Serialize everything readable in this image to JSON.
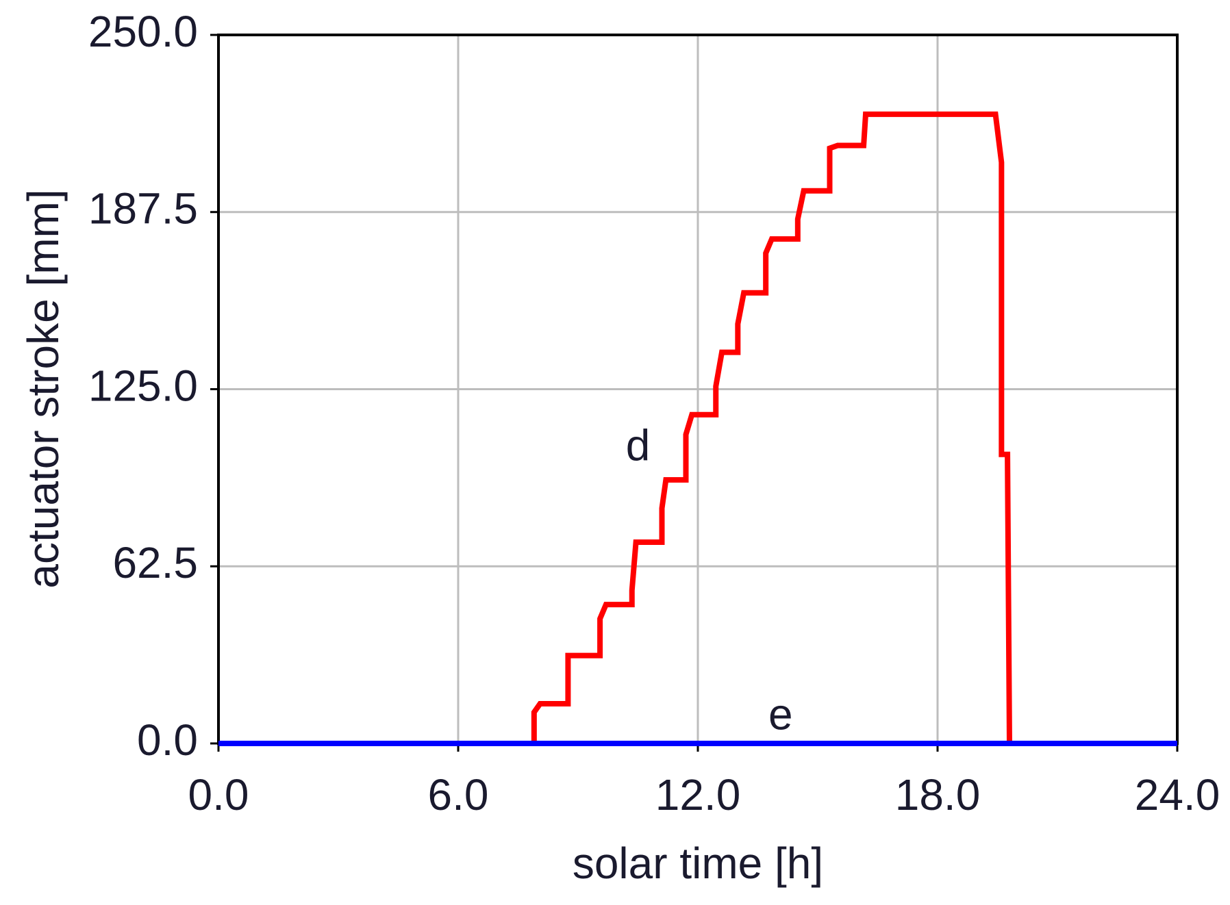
{
  "chart_data": {
    "type": "line",
    "xlabel": "solar time [h]",
    "ylabel": "actuator stroke [mm]",
    "xlim": [
      0,
      24
    ],
    "xticks": [
      {
        "value": 0,
        "label": "0.0"
      },
      {
        "value": 6,
        "label": "6.0"
      },
      {
        "value": 12,
        "label": "12.0"
      },
      {
        "value": 18,
        "label": "18.0"
      },
      {
        "value": 24,
        "label": "24.0"
      }
    ],
    "ylim": [
      0,
      250
    ],
    "yticks": [
      {
        "value": 0,
        "label": "0.0"
      },
      62.5,
      {
        "value": 125,
        "label": "125.0"
      },
      187.5,
      {
        "value": 250,
        "label": "250.0"
      }
    ],
    "grid": true,
    "series": [
      {
        "name": "d",
        "color": "#ff0000",
        "x": [
          0,
          7.9,
          7.9,
          8.05,
          8.75,
          8.75,
          9.55,
          9.55,
          9.7,
          10.35,
          10.35,
          10.45,
          11.1,
          11.1,
          11.2,
          11.7,
          11.7,
          11.85,
          12.45,
          12.45,
          12.6,
          13.0,
          13.0,
          13.15,
          13.7,
          13.7,
          13.85,
          14.5,
          14.5,
          14.65,
          15.3,
          15.3,
          15.5,
          16.15,
          16.2,
          19.45,
          19.6,
          19.6,
          19.75,
          19.8,
          24
        ],
        "values": [
          0,
          0,
          11,
          14,
          14,
          31,
          31,
          44,
          49,
          49,
          54,
          71,
          71,
          83,
          93,
          93,
          109,
          116,
          116,
          126,
          138,
          138,
          148,
          159,
          159,
          173,
          178,
          178,
          185,
          195,
          195,
          210,
          211,
          211,
          222,
          222,
          205,
          102,
          102,
          0,
          0
        ]
      },
      {
        "name": "e",
        "color": "#0000ff",
        "x": [
          0,
          24
        ],
        "values": [
          0,
          0
        ]
      }
    ],
    "annotations": [
      {
        "text": "d",
        "x": 10.5,
        "y": 104
      },
      {
        "text": "e",
        "x": 14.07,
        "y": 9
      }
    ]
  }
}
